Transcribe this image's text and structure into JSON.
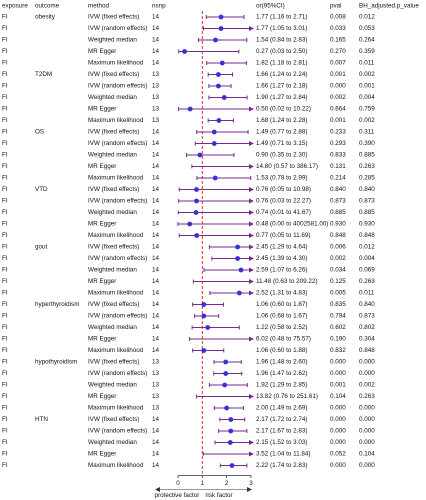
{
  "header": [
    "exposure",
    "outcome",
    "method",
    "nsnp",
    "or(95%CI)",
    "pval",
    "BH_adjusted.p_value"
  ],
  "plot": {
    "xlim": [
      0,
      3
    ],
    "xticks": [
      0,
      1,
      2,
      3
    ],
    "reference": 1,
    "left_label": "protective factor",
    "right_label": "risk factor",
    "point_color": "#3b2fd9",
    "ci_color": "#7a2a8f",
    "reference_color": "#e03030"
  },
  "groups": [
    {
      "outcome": "obesity",
      "rows": [
        {
          "exposure": "FI",
          "method": "IVW (fixed effects)",
          "nsnp": "14",
          "or": 1.77,
          "lower": 1.16,
          "upper": 2.71,
          "ci_label": "1.77 (1.16 to 2.71)",
          "pval": "0.008",
          "bh": "0.012"
        },
        {
          "exposure": "FI",
          "method": "IVW (random effects)",
          "nsnp": "14",
          "or": 1.77,
          "lower": 1.05,
          "upper": 3.01,
          "ci_label": "1.77 (1.05 to 3.01)",
          "pval": "0.033",
          "bh": "0.053"
        },
        {
          "exposure": "FI",
          "method": "Weighted median",
          "nsnp": "14",
          "or": 1.54,
          "lower": 0.84,
          "upper": 2.83,
          "ci_label": "1.54 (0.84 to 2.83)",
          "pval": "0.165",
          "bh": "0.264"
        },
        {
          "exposure": "FI",
          "method": "MR Egger",
          "nsnp": "14",
          "or": 0.27,
          "lower": 0.03,
          "upper": 2.5,
          "ci_label": "0.27 (0.03 to 2.50)",
          "pval": "0.270",
          "bh": "0.359"
        },
        {
          "exposure": "FI",
          "method": "Maximum likelihood",
          "nsnp": "14",
          "or": 1.82,
          "lower": 1.18,
          "upper": 2.81,
          "ci_label": "1.82 (1.18 to 2.81)",
          "pval": "0.007",
          "bh": "0.011"
        }
      ]
    },
    {
      "outcome": "T2DM",
      "rows": [
        {
          "exposure": "FI",
          "method": "IVW (fixed effects)",
          "nsnp": "13",
          "or": 1.66,
          "lower": 1.24,
          "upper": 2.24,
          "ci_label": "1.66 (1.24 to 2.24)",
          "pval": "0.001",
          "bh": "0.002"
        },
        {
          "exposure": "FI",
          "method": "IVW (random effects)",
          "nsnp": "13",
          "or": 1.66,
          "lower": 1.27,
          "upper": 2.18,
          "ci_label": "1.66 (1.27 to 2.18)",
          "pval": "0.000",
          "bh": "0.001"
        },
        {
          "exposure": "FI",
          "method": "Weighted median",
          "nsnp": "13",
          "or": 1.9,
          "lower": 1.27,
          "upper": 2.84,
          "ci_label": "1.90 (1.27 to 2.84)",
          "pval": "0.002",
          "bh": "0.004"
        },
        {
          "exposure": "FI",
          "method": "MR Egger",
          "nsnp": "13",
          "or": 0.5,
          "lower": 0.02,
          "upper": 10.22,
          "ci_label": "0.50 (0.02 to 10.22)",
          "pval": "0.664",
          "bh": "0.759"
        },
        {
          "exposure": "FI",
          "method": "Maximum likelihood",
          "nsnp": "13",
          "or": 1.68,
          "lower": 1.24,
          "upper": 2.28,
          "ci_label": "1.68 (1.24 to 2.28)",
          "pval": "0.001",
          "bh": "0.002"
        }
      ]
    },
    {
      "outcome": "OS",
      "rows": [
        {
          "exposure": "FI",
          "method": "IVW (fixed effects)",
          "nsnp": "14",
          "or": 1.49,
          "lower": 0.77,
          "upper": 2.88,
          "ci_label": "1.49 (0.77 to 2.88)",
          "pval": "0.233",
          "bh": "0.311"
        },
        {
          "exposure": "FI",
          "method": "IVW (random effects)",
          "nsnp": "14",
          "or": 1.49,
          "lower": 0.71,
          "upper": 3.15,
          "ci_label": "1.49 (0.71 to 3.15)",
          "pval": "0.293",
          "bh": "0.390"
        },
        {
          "exposure": "FI",
          "method": "Weighted median",
          "nsnp": "14",
          "or": 0.9,
          "lower": 0.35,
          "upper": 2.3,
          "ci_label": "0.90 (0.35 to 2.30)",
          "pval": "0.833",
          "bh": "0.885"
        },
        {
          "exposure": "FI",
          "method": "MR Egger",
          "nsnp": "14",
          "or": 14.8,
          "lower": 0.57,
          "upper": 386.17,
          "ci_label": "14.80 (0.57 to 386.17)",
          "pval": "0.131",
          "bh": "0.263"
        },
        {
          "exposure": "FI",
          "method": "Maximum likelihood",
          "nsnp": "14",
          "or": 1.53,
          "lower": 0.78,
          "upper": 2.99,
          "ci_label": "1.53 (0.78 to 2.99)",
          "pval": "0.214",
          "bh": "0.285"
        }
      ]
    },
    {
      "outcome": "VTD",
      "rows": [
        {
          "exposure": "FI",
          "method": "IVW (fixed effects)",
          "nsnp": "14",
          "or": 0.76,
          "lower": 0.05,
          "upper": 10.98,
          "ci_label": "0.76 (0.05 to 10.98)",
          "pval": "0.840",
          "bh": "0.840"
        },
        {
          "exposure": "FI",
          "method": "IVW (random effects)",
          "nsnp": "14",
          "or": 0.76,
          "lower": 0.03,
          "upper": 22.27,
          "ci_label": "0.76 (0.03 to 22.27)",
          "pval": "0.873",
          "bh": "0.873"
        },
        {
          "exposure": "FI",
          "method": "Weighted median",
          "nsnp": "14",
          "or": 0.74,
          "lower": 0.01,
          "upper": 41.67,
          "ci_label": "0.74 (0.01 to 41.67)",
          "pval": "0.885",
          "bh": "0.885"
        },
        {
          "exposure": "FI",
          "method": "MR Egger",
          "nsnp": "14",
          "or": 0.48,
          "lower": 0.0,
          "upper": 4002581.0,
          "ci_label": "0.48 (0.00 to 4002581.00)",
          "pval": "0.930",
          "bh": "0.930"
        },
        {
          "exposure": "FI",
          "method": "Maximum likelihood",
          "nsnp": "14",
          "or": 0.77,
          "lower": 0.05,
          "upper": 11.69,
          "ci_label": "0.77 (0.05 to 11.69)",
          "pval": "0.848",
          "bh": "0.848"
        }
      ]
    },
    {
      "outcome": "gout",
      "rows": [
        {
          "exposure": "FI",
          "method": "IVW (fixed effects)",
          "nsnp": "14",
          "or": 2.45,
          "lower": 1.29,
          "upper": 4.64,
          "ci_label": "2.45 (1.29 to 4.64)",
          "pval": "0.006",
          "bh": "0.012"
        },
        {
          "exposure": "FI",
          "method": "IVW (random effects)",
          "nsnp": "14",
          "or": 2.45,
          "lower": 1.39,
          "upper": 4.3,
          "ci_label": "2.45 (1.39 to 4.30)",
          "pval": "0.002",
          "bh": "0.004"
        },
        {
          "exposure": "FI",
          "method": "Weighted median",
          "nsnp": "14",
          "or": 2.59,
          "lower": 1.07,
          "upper": 6.26,
          "ci_label": "2.59 (1.07 to 6.26)",
          "pval": "0.034",
          "bh": "0.069"
        },
        {
          "exposure": "FI",
          "method": "MR Egger",
          "nsnp": "14",
          "or": 11.48,
          "lower": 0.63,
          "upper": 209.22,
          "ci_label": "11.48 (0.63 to 209.22)",
          "pval": "0.125",
          "bh": "0.263"
        },
        {
          "exposure": "FI",
          "method": "Maximum likelihood",
          "nsnp": "14",
          "or": 2.52,
          "lower": 1.31,
          "upper": 4.83,
          "ci_label": "2.52 (1.31 to 4.83)",
          "pval": "0.005",
          "bh": "0.011"
        }
      ]
    },
    {
      "outcome": "hyperthyroidism",
      "rows": [
        {
          "exposure": "FI",
          "method": "IVW (fixed effects)",
          "nsnp": "14",
          "or": 1.06,
          "lower": 0.6,
          "upper": 1.87,
          "ci_label": "1.06 (0.60 to 1.87)",
          "pval": "0.835",
          "bh": "0.840"
        },
        {
          "exposure": "FI",
          "method": "IVW (random effects)",
          "nsnp": "14",
          "or": 1.06,
          "lower": 0.68,
          "upper": 1.67,
          "ci_label": "1.06 (0.68 to 1.67)",
          "pval": "0.794",
          "bh": "0.873"
        },
        {
          "exposure": "FI",
          "method": "Weighted median",
          "nsnp": "14",
          "or": 1.22,
          "lower": 0.58,
          "upper": 2.52,
          "ci_label": "1.22 (0.58 to 2.52)",
          "pval": "0.602",
          "bh": "0.802"
        },
        {
          "exposure": "FI",
          "method": "MR Egger",
          "nsnp": "14",
          "or": 6.02,
          "lower": 0.48,
          "upper": 75.57,
          "ci_label": "6.02 (0.48 to 75.57)",
          "pval": "0.190",
          "bh": "0.304"
        },
        {
          "exposure": "FI",
          "method": "Maximum likelihood",
          "nsnp": "14",
          "or": 1.06,
          "lower": 0.6,
          "upper": 1.88,
          "ci_label": "1.06 (0.60 to 1.88)",
          "pval": "0.832",
          "bh": "0.848"
        }
      ]
    },
    {
      "outcome": "hypothyroidism",
      "rows": [
        {
          "exposure": "FI",
          "method": "IVW (fixed effects)",
          "nsnp": "13",
          "or": 1.96,
          "lower": 1.48,
          "upper": 2.6,
          "ci_label": "1.96 (1.48 to 2.60)",
          "pval": "0.000",
          "bh": "0.000"
        },
        {
          "exposure": "FI",
          "method": "IVW (random effects)",
          "nsnp": "13",
          "or": 1.96,
          "lower": 1.47,
          "upper": 2.62,
          "ci_label": "1.96 (1.47 to 2.62)",
          "pval": "0.000",
          "bh": "0.000"
        },
        {
          "exposure": "FI",
          "method": "Weighted median",
          "nsnp": "13",
          "or": 1.92,
          "lower": 1.29,
          "upper": 2.85,
          "ci_label": "1.92 (1.29 to 2.85)",
          "pval": "0.001",
          "bh": "0.002"
        },
        {
          "exposure": "FI",
          "method": "MR Egger",
          "nsnp": "13",
          "or": 13.82,
          "lower": 0.76,
          "upper": 251.61,
          "ci_label": "13.82 (0.76 to 251.61)",
          "pval": "0.104",
          "bh": "0.263"
        },
        {
          "exposure": "FI",
          "method": "Maximum likelihood",
          "nsnp": "13",
          "or": 2.0,
          "lower": 1.49,
          "upper": 2.69,
          "ci_label": "2.00 (1.49 to 2.69)",
          "pval": "0.000",
          "bh": "0.000"
        }
      ]
    },
    {
      "outcome": "HTN",
      "rows": [
        {
          "exposure": "FI",
          "method": "IVW (fixed effects)",
          "nsnp": "14",
          "or": 2.17,
          "lower": 1.72,
          "upper": 2.74,
          "ci_label": "2.17 (1.72 to 2.74)",
          "pval": "0.000",
          "bh": "0.000"
        },
        {
          "exposure": "FI",
          "method": "IVW (random effects)",
          "nsnp": "14",
          "or": 2.17,
          "lower": 1.67,
          "upper": 2.83,
          "ci_label": "2.17 (1.67 to 2.83)",
          "pval": "0.000",
          "bh": "0.000"
        },
        {
          "exposure": "FI",
          "method": "Weighted median",
          "nsnp": "14",
          "or": 2.15,
          "lower": 1.52,
          "upper": 3.03,
          "ci_label": "2.15 (1.52 to 3.03)",
          "pval": "0.000",
          "bh": "0.000"
        },
        {
          "exposure": "FI",
          "method": "MR Egger",
          "nsnp": "14",
          "or": 3.52,
          "lower": 1.04,
          "upper": 11.84,
          "ci_label": "3.52 (1.04 to 11.84)",
          "pval": "0.052",
          "bh": "0.104"
        },
        {
          "exposure": "FI",
          "method": "Maximum likelihood",
          "nsnp": "14",
          "or": 2.22,
          "lower": 1.74,
          "upper": 2.83,
          "ci_label": "2.22 (1.74 to 2.83)",
          "pval": "0.000",
          "bh": "0.000"
        }
      ]
    }
  ]
}
